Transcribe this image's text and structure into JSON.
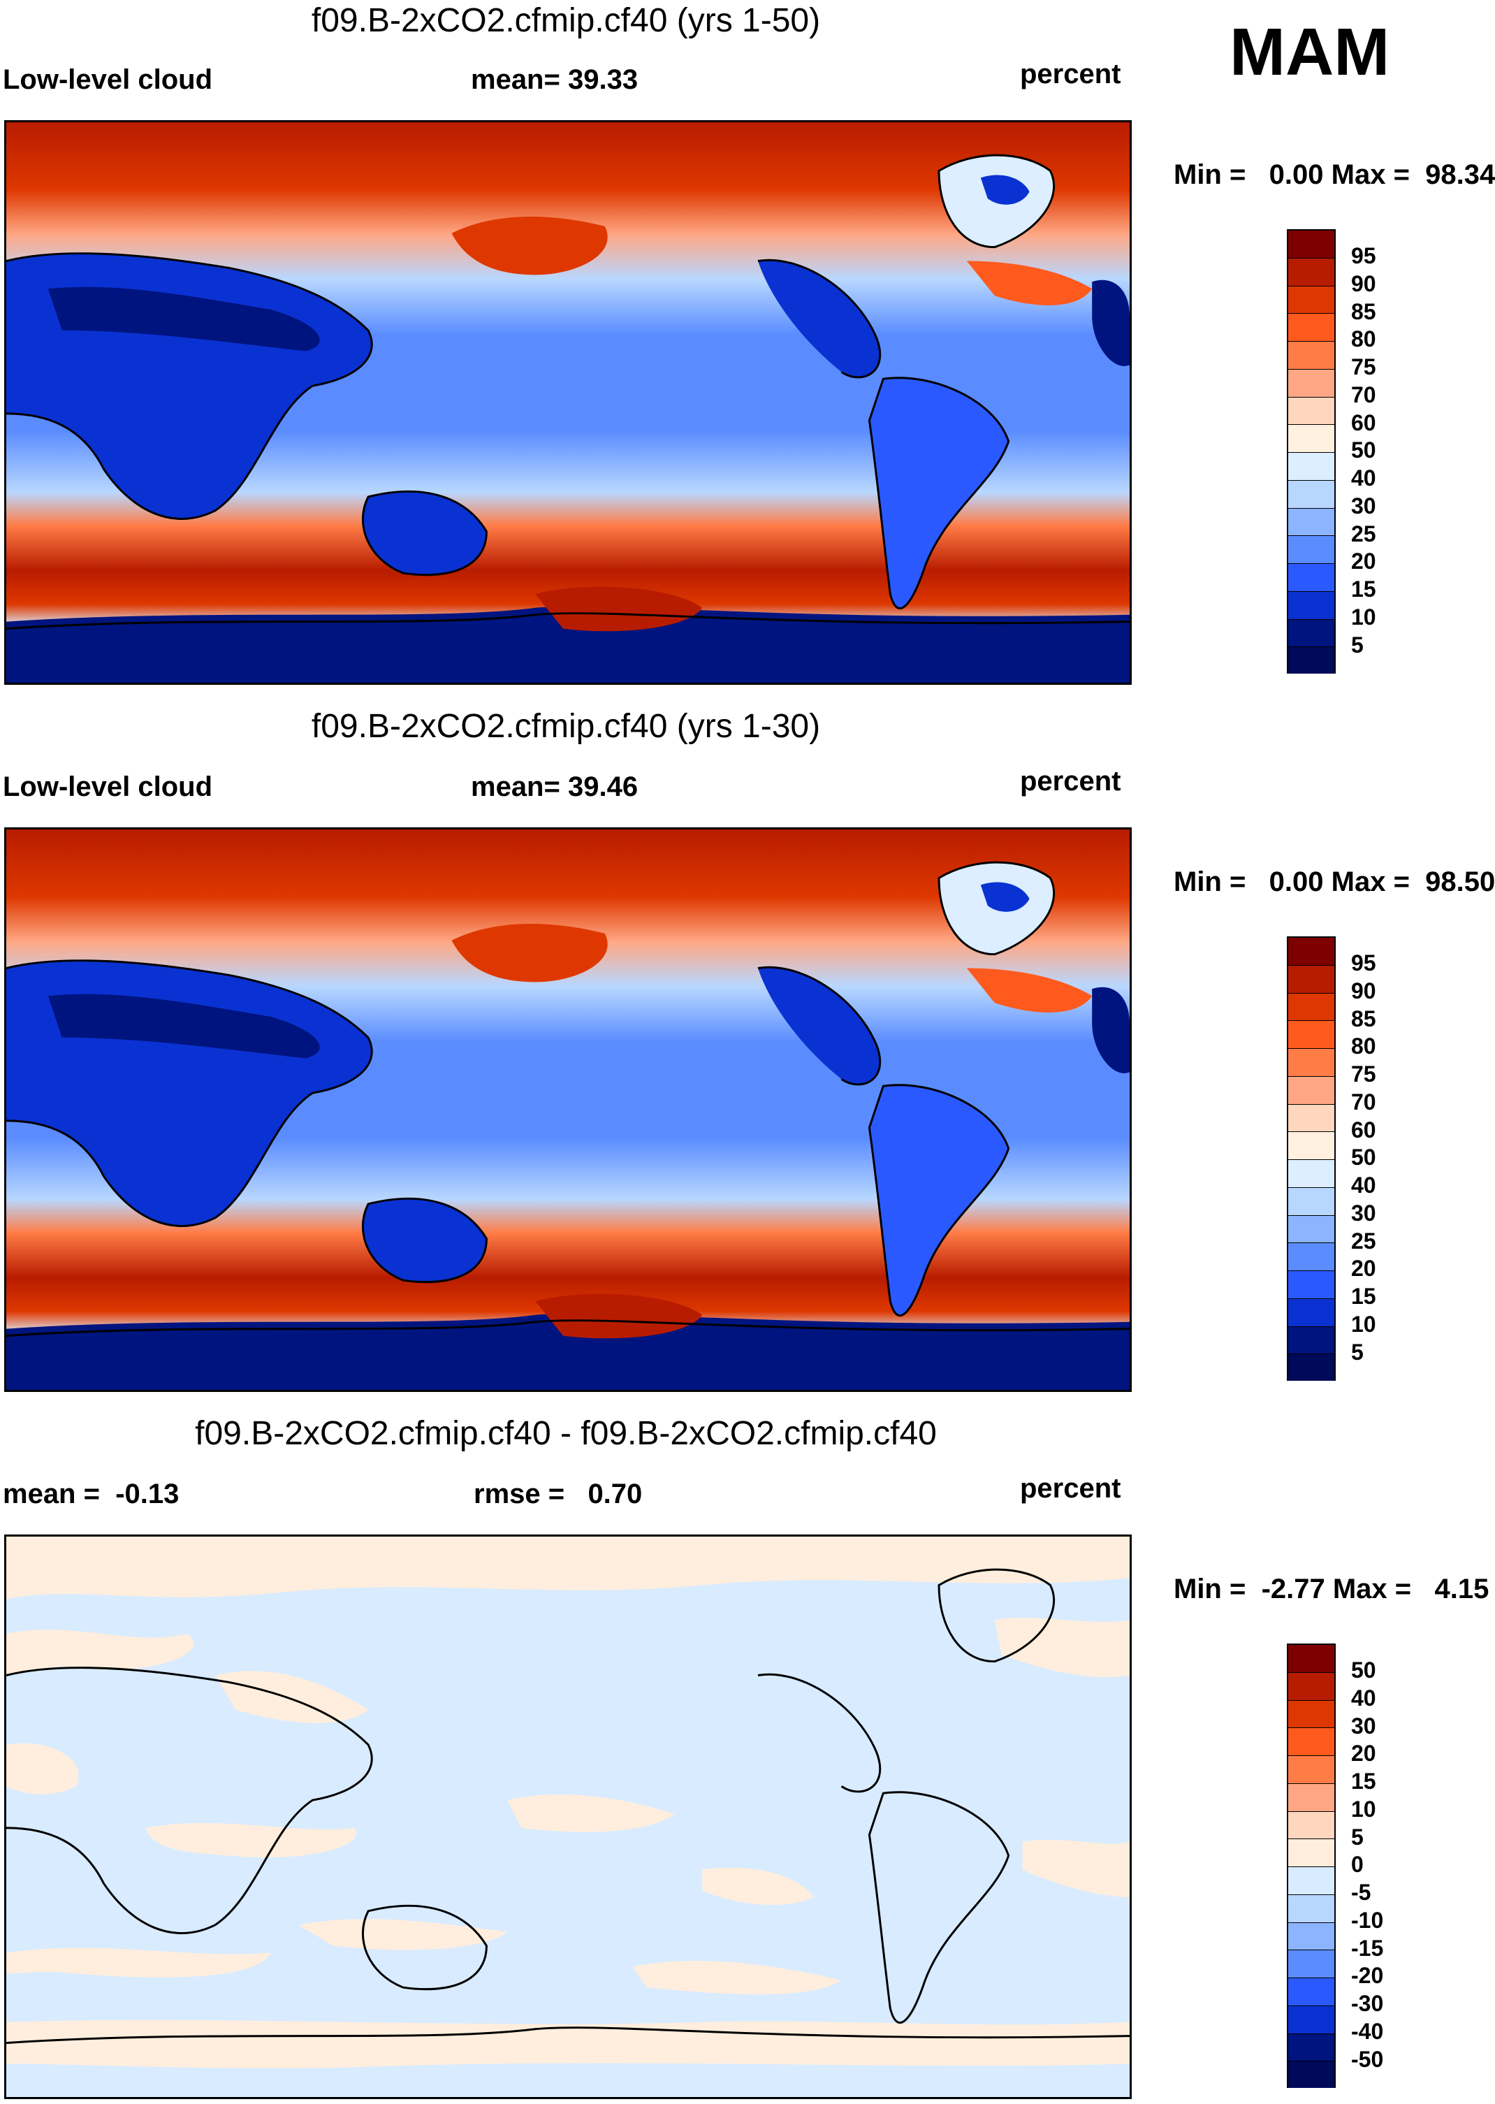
{
  "season": "MAM",
  "panels": [
    {
      "title": "f09.B-2xCO2.cfmip.cf40 (yrs 1-50)",
      "left_label": "Low-level cloud",
      "center_label": "mean=  39.33",
      "units": "percent",
      "minmax": "Min =   0.00 Max =  98.34",
      "colorbar_labels": [
        "95",
        "90",
        "85",
        "80",
        "75",
        "70",
        "60",
        "50",
        "40",
        "30",
        "25",
        "20",
        "15",
        "10",
        "5"
      ]
    },
    {
      "title": "f09.B-2xCO2.cfmip.cf40 (yrs 1-30)",
      "left_label": "Low-level cloud",
      "center_label": "mean=  39.46",
      "units": "percent",
      "minmax": "Min =   0.00 Max =  98.50",
      "colorbar_labels": [
        "95",
        "90",
        "85",
        "80",
        "75",
        "70",
        "60",
        "50",
        "40",
        "30",
        "25",
        "20",
        "15",
        "10",
        "5"
      ]
    },
    {
      "title": "f09.B-2xCO2.cfmip.cf40 - f09.B-2xCO2.cfmip.cf40",
      "left_label": "mean =  -0.13",
      "center_label": "rmse =   0.70",
      "units": "percent",
      "minmax": "Min =  -2.77 Max =   4.15",
      "colorbar_labels": [
        "50",
        "40",
        "30",
        "20",
        "15",
        "10",
        "5",
        "0",
        "-5",
        "-10",
        "-15",
        "-20",
        "-30",
        "-40",
        "-50"
      ]
    }
  ],
  "colors": {
    "abs_scale": [
      "#7f0000",
      "#b81c00",
      "#de3800",
      "#ff5a1e",
      "#ff7c46",
      "#ffa784",
      "#ffd7bf",
      "#fff0e0",
      "#dceeff",
      "#b8d7ff",
      "#8cb4ff",
      "#5a8cff",
      "#2a5aff",
      "#0a32d2",
      "#00147f",
      "#000a5a"
    ],
    "diff_scale": [
      "#7f0000",
      "#b81c00",
      "#de3800",
      "#ff5a1e",
      "#ff7c46",
      "#ffa784",
      "#ffd7bf",
      "#ffeedd",
      "#d9ebff",
      "#b8d7ff",
      "#8cb4ff",
      "#5a8cff",
      "#2a5aff",
      "#0a32d2",
      "#00147f",
      "#000a5a"
    ]
  }
}
